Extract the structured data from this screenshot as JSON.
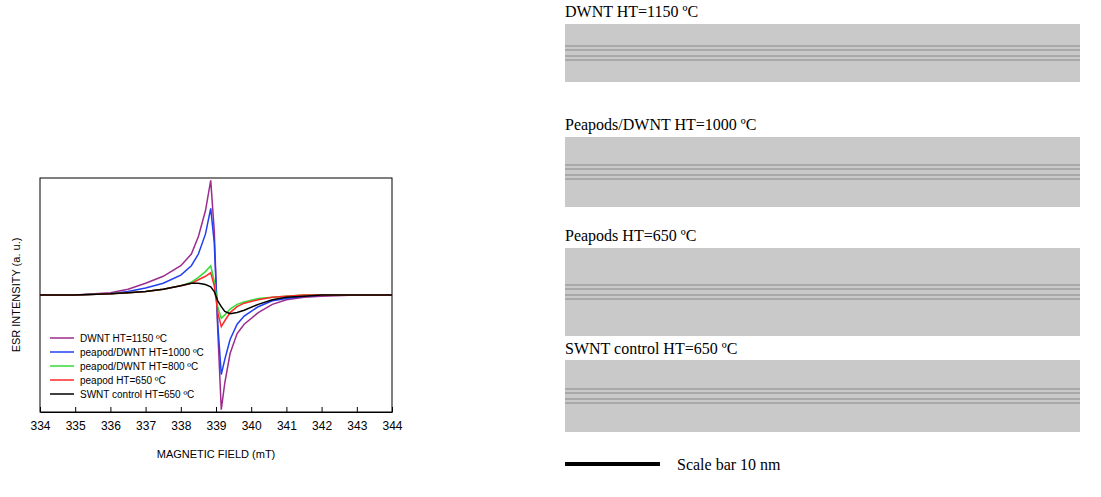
{
  "chart_data": {
    "type": "line",
    "x_label": "MAGNETIC FIELD (mT)",
    "y_label": "ESR INTENSITY (a. u.)",
    "xlim": [
      334,
      344
    ],
    "ylim": [
      -1,
      1
    ],
    "xticks": [
      334,
      335,
      336,
      337,
      338,
      339,
      340,
      341,
      342,
      343,
      344
    ],
    "tick_labels": "x",
    "legend": "lower left",
    "x": [
      334,
      335,
      336,
      336.5,
      337,
      337.5,
      338,
      338.3,
      338.5,
      338.7,
      338.85,
      338.95,
      339.05,
      339.15,
      339.25,
      339.4,
      339.6,
      339.8,
      340.2,
      340.6,
      341,
      341.5,
      342,
      343,
      344
    ],
    "series": [
      {
        "name": "DWNT HT=1150 ºC",
        "color": "#9b2d8e",
        "values": [
          0,
          0,
          0.02,
          0.05,
          0.1,
          0.16,
          0.25,
          0.35,
          0.5,
          0.72,
          0.98,
          0.55,
          -0.3,
          -0.98,
          -0.75,
          -0.5,
          -0.33,
          -0.25,
          -0.15,
          -0.08,
          -0.04,
          -0.02,
          -0.01,
          0,
          0
        ]
      },
      {
        "name": "peapod/DWNT HT=1000 ºC",
        "color": "#2040f0",
        "values": [
          0,
          0,
          0.01,
          0.03,
          0.06,
          0.1,
          0.17,
          0.25,
          0.35,
          0.52,
          0.74,
          0.45,
          -0.25,
          -0.68,
          -0.55,
          -0.38,
          -0.25,
          -0.18,
          -0.1,
          -0.05,
          -0.03,
          -0.01,
          0,
          0,
          0
        ]
      },
      {
        "name": "peapod/DWNT HT=800 ºC",
        "color": "#33dd33",
        "values": [
          0,
          0,
          0.01,
          0.02,
          0.03,
          0.05,
          0.08,
          0.11,
          0.15,
          0.2,
          0.25,
          0.12,
          -0.1,
          -0.2,
          -0.17,
          -0.12,
          -0.08,
          -0.06,
          -0.03,
          -0.02,
          -0.01,
          0,
          0,
          0,
          0
        ]
      },
      {
        "name": "peapod HT=650 ºC",
        "color": "#ff2a2a",
        "values": [
          0,
          0,
          0.01,
          0.02,
          0.03,
          0.05,
          0.08,
          0.1,
          0.13,
          0.16,
          0.19,
          0.08,
          -0.15,
          -0.27,
          -0.22,
          -0.15,
          -0.1,
          -0.07,
          -0.04,
          -0.02,
          -0.01,
          0,
          0,
          0,
          0
        ]
      },
      {
        "name": "SWNT control HT=650 ºC",
        "color": "#000000",
        "values": [
          0,
          0,
          0.01,
          0.02,
          0.03,
          0.05,
          0.08,
          0.1,
          0.1,
          0.09,
          0.07,
          0.03,
          -0.05,
          -0.1,
          -0.14,
          -0.16,
          -0.15,
          -0.13,
          -0.08,
          -0.04,
          -0.02,
          -0.01,
          0,
          0,
          0
        ]
      }
    ]
  },
  "images": [
    {
      "title": "DWNT HT=1150 ºC"
    },
    {
      "title": "Peapods/DWNT HT=1000 ºC"
    },
    {
      "title": "Peapods HT=650 ºC"
    },
    {
      "title": "SWNT control HT=650 ºC"
    }
  ],
  "scale_bar": {
    "label": "Scale bar 10 nm"
  }
}
